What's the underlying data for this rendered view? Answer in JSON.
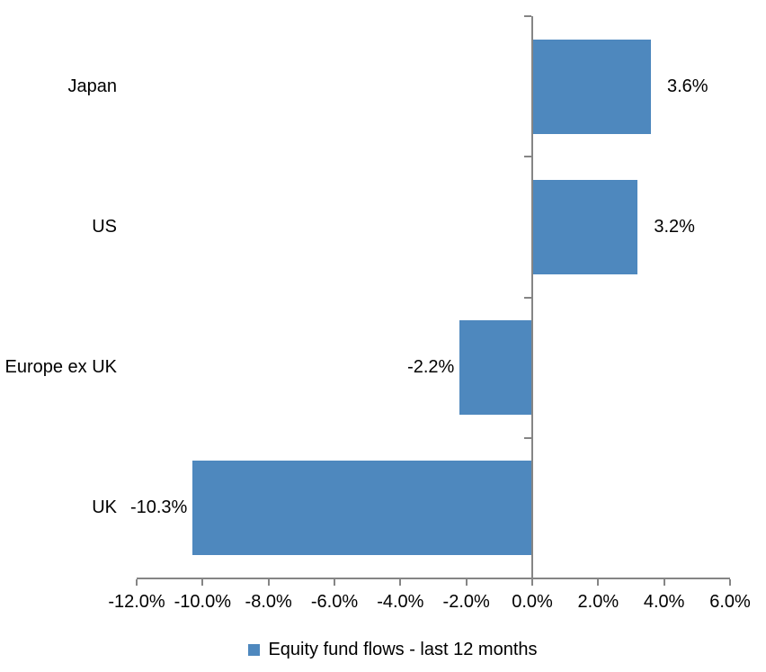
{
  "chart_data": {
    "type": "bar",
    "orientation": "horizontal",
    "title": "",
    "categories": [
      "Japan",
      "US",
      "Europe ex UK",
      "UK"
    ],
    "values": [
      3.6,
      3.2,
      -2.2,
      -10.3
    ],
    "data_labels": [
      "3.6%",
      "3.2%",
      "-2.2%",
      "-10.3%"
    ],
    "x_tick_values": [
      -12,
      -10,
      -8,
      -6,
      -4,
      -2,
      0,
      2,
      4,
      6
    ],
    "x_tick_labels": [
      "-12.0%",
      "-10.0%",
      "-8.0%",
      "-6.0%",
      "-4.0%",
      "-2.0%",
      "0.0%",
      "2.0%",
      "4.0%",
      "6.0%"
    ],
    "xlim": [
      -12,
      6
    ],
    "grid": false,
    "legend": "Equity fund flows - last 12 months",
    "legend_position": "bottom",
    "colors": {
      "bar": "#4e88be",
      "axis": "#858585",
      "text": "#000000",
      "background": "#ffffff"
    }
  }
}
